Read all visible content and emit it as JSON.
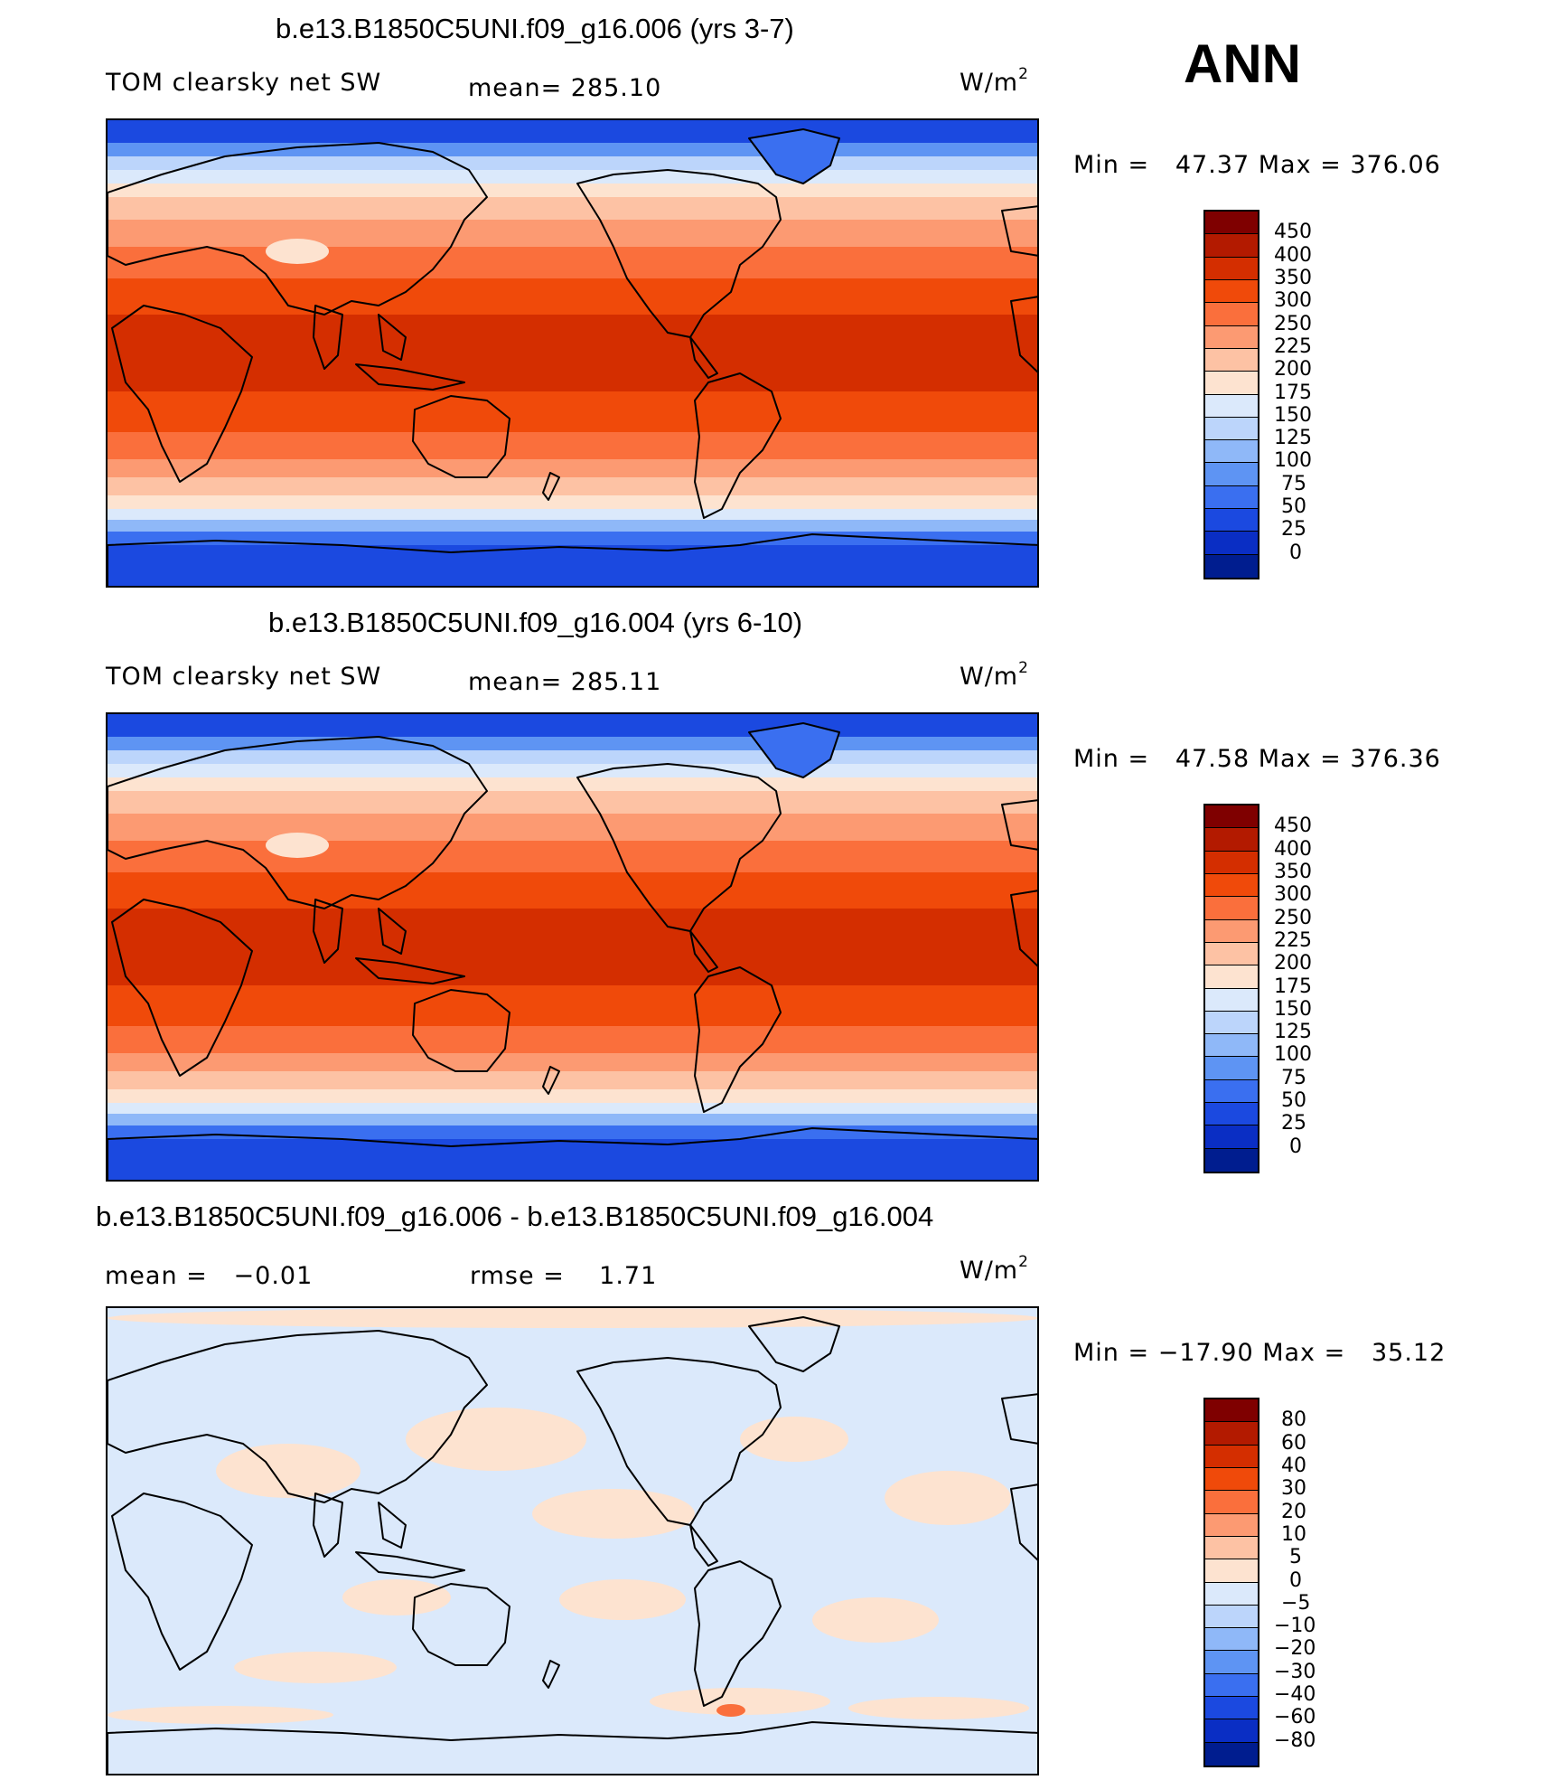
{
  "season": "ANN",
  "unit_prefix": "W/m",
  "unit_sup": "2",
  "panels": [
    {
      "title": "b.e13.B1850C5UNI.f09_g16.006 (yrs 3-7)",
      "left_label": "TOM clearsky net SW",
      "stat1": "mean= 285.10",
      "stat2": "",
      "minmax": "Min =   47.37 Max = 376.06",
      "kind": "abs"
    },
    {
      "title": "b.e13.B1850C5UNI.f09_g16.004 (yrs 6-10)",
      "left_label": "TOM clearsky net SW",
      "stat1": "mean= 285.11",
      "stat2": "",
      "minmax": "Min =   47.58 Max = 376.36",
      "kind": "abs"
    },
    {
      "title": "b.e13.B1850C5UNI.f09_g16.006 - b.e13.B1850C5UNI.f09_g16.004",
      "left_label": "mean =   −0.01",
      "stat1": "rmse =    1.71",
      "stat2": "",
      "minmax": "Min = −17.90 Max =   35.12",
      "kind": "diff"
    }
  ],
  "colorbar_abs": {
    "labels": [
      "450",
      "400",
      "350",
      "300",
      "250",
      "225",
      "200",
      "175",
      "150",
      "125",
      "100",
      "75",
      "50",
      "25",
      "0"
    ],
    "colors": [
      "#7f0000",
      "#b31a00",
      "#d42e00",
      "#f04a0a",
      "#fa6f3c",
      "#fc9a72",
      "#fdc2a4",
      "#fde3d0",
      "#dbe9fb",
      "#bcd5fb",
      "#8fb8f8",
      "#5e94f3",
      "#3a6ff0",
      "#1b49e0",
      "#0a2ec4",
      "#001d8f"
    ]
  },
  "colorbar_diff": {
    "labels": [
      "80",
      "60",
      "40",
      "30",
      "20",
      "10",
      "5",
      "0",
      "−5",
      "−10",
      "−20",
      "−30",
      "−40",
      "−60",
      "−80"
    ],
    "colors": [
      "#7f0000",
      "#b31a00",
      "#d42e00",
      "#f04a0a",
      "#fa6f3c",
      "#fc9a72",
      "#fdc2a4",
      "#fde3d0",
      "#dbe9fb",
      "#bcd5fb",
      "#8fb8f8",
      "#5e94f3",
      "#3a6ff0",
      "#1b49e0",
      "#0a2ec4",
      "#001d8f"
    ]
  }
}
